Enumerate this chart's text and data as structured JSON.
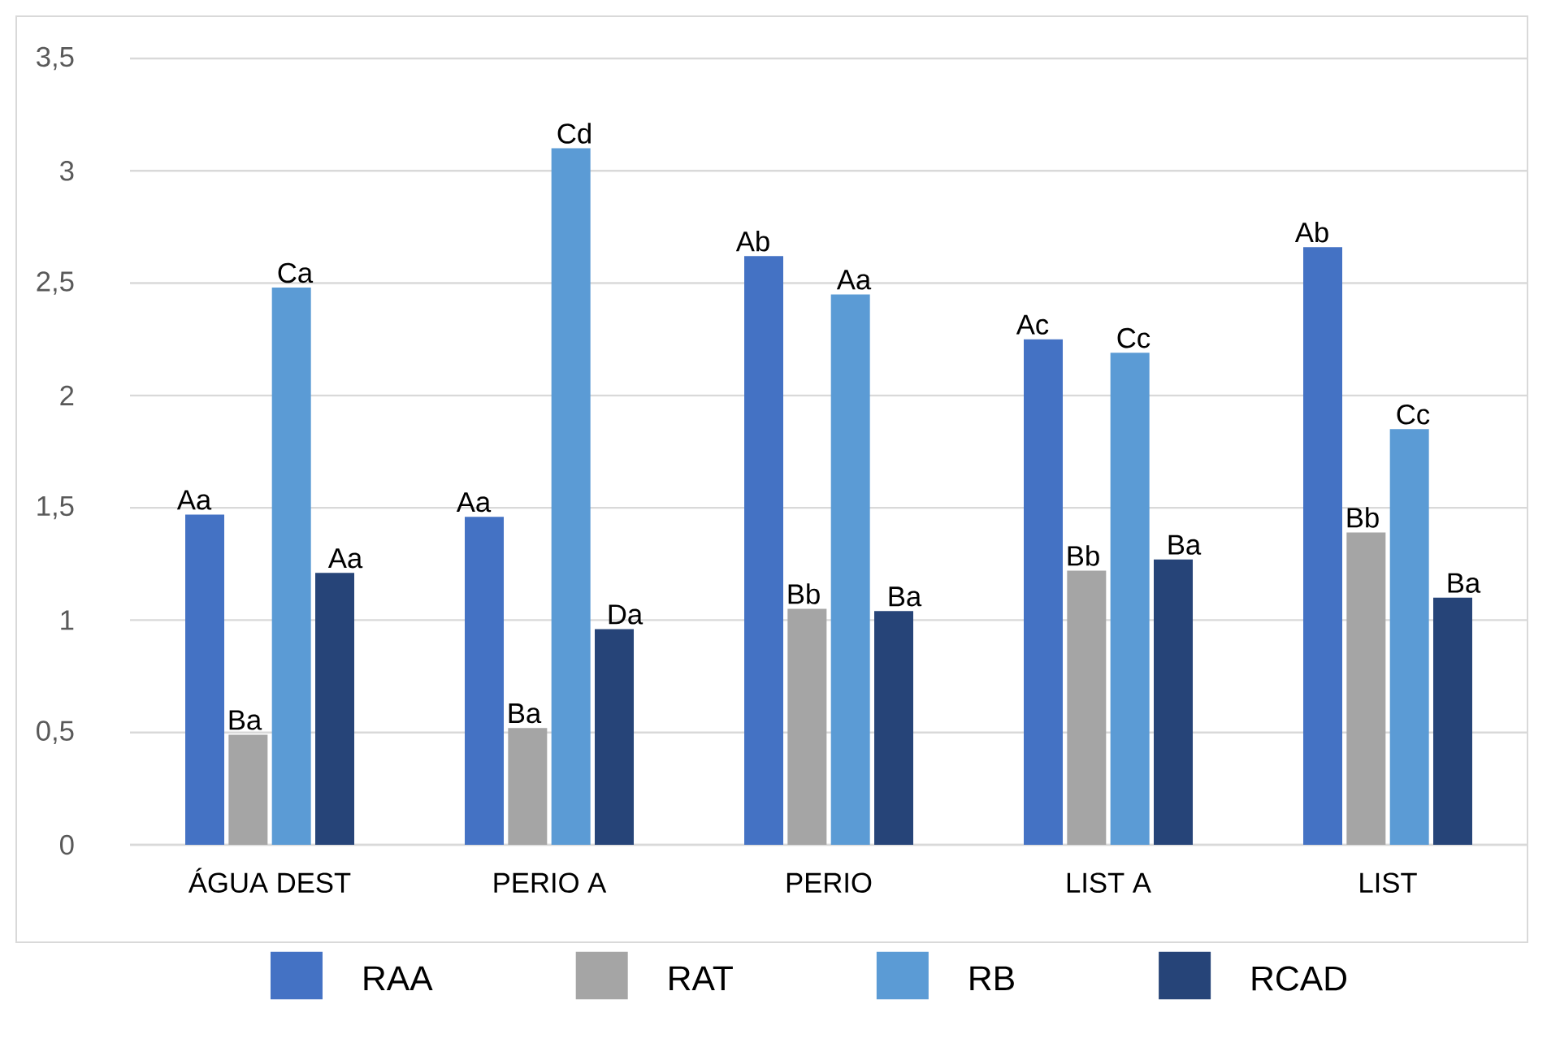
{
  "chart_data": {
    "type": "bar",
    "categories": [
      "ÁGUA DEST",
      "PERIO A",
      "PERIO",
      "LIST A",
      "LIST"
    ],
    "series": [
      {
        "name": "RAA",
        "color": "#4472c4",
        "values": [
          1.47,
          1.46,
          2.62,
          2.25,
          2.66
        ],
        "value_labels": [
          "Aa",
          "Aa",
          "Ab",
          "Ac",
          "Ab"
        ]
      },
      {
        "name": "RAT",
        "color": "#a5a5a5",
        "values": [
          0.49,
          0.52,
          1.05,
          1.22,
          1.39
        ],
        "value_labels": [
          "Ba",
          "Ba",
          "Bb",
          "Bb",
          "Bb"
        ]
      },
      {
        "name": "RB",
        "color": "#5b9bd5",
        "values": [
          2.48,
          3.1,
          2.45,
          2.19,
          1.85
        ],
        "value_labels": [
          "Ca",
          "Cd",
          "Aa",
          "Cc",
          "Cc"
        ]
      },
      {
        "name": "RCAD",
        "color": "#264478",
        "values": [
          1.21,
          0.96,
          1.04,
          1.27,
          1.1
        ],
        "value_labels": [
          "Aa",
          "Da",
          "Ba",
          "Ba",
          "Ba"
        ]
      }
    ],
    "ylim": [
      0,
      3.5
    ],
    "yticks": [
      0,
      {
        "value": 0.5,
        "label": "0,5"
      },
      1,
      {
        "value": 1.5,
        "label": "1,5"
      },
      2,
      {
        "value": 2.5,
        "label": "2,5"
      },
      3,
      {
        "value": 3.5,
        "label": "3,5"
      }
    ],
    "grid": "y",
    "legend": "bottom"
  }
}
